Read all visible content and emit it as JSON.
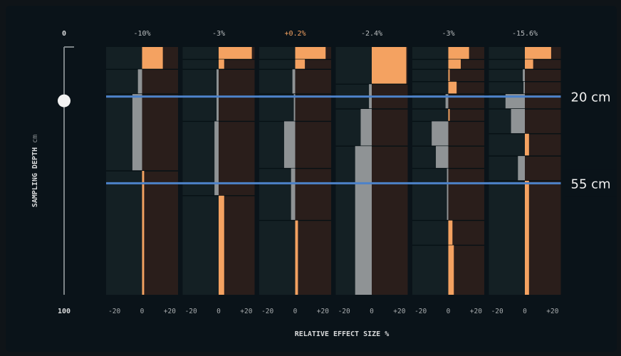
{
  "slider": {
    "top_label": "0",
    "bottom_label": "100",
    "axis_label": "SAMPLING DEPTH",
    "axis_unit": "cm",
    "value": 20
  },
  "x_axis_label": "RELATIVE EFFECT SIZE %",
  "depth_lines": [
    {
      "label": "20 cm",
      "depth": 20
    },
    {
      "label": "55 cm",
      "depth": 55
    }
  ],
  "colors": {
    "positive": "#f4a261",
    "negative": "#8f9395",
    "highlight_text": "#f4a261",
    "guide_line": "#4d82c9",
    "panel_left": "#142024",
    "panel_right": "#2a1e1b"
  },
  "chart_data": {
    "type": "bar",
    "orientation": "horizontal",
    "y_range_cm": [
      0,
      100
    ],
    "x_range": [
      -26,
      26
    ],
    "xticks": [
      "-20",
      "0",
      "+20"
    ],
    "panels": [
      {
        "title": "-10%",
        "highlight": false,
        "bars": [
          {
            "from": 0,
            "to": 9,
            "value": 15
          },
          {
            "from": 9,
            "to": 19,
            "value": -3
          },
          {
            "from": 19,
            "to": 50,
            "value": -7
          },
          {
            "from": 50,
            "to": 100,
            "value": 1.5
          }
        ]
      },
      {
        "title": "-3%",
        "highlight": false,
        "bars": [
          {
            "from": 0,
            "to": 5,
            "value": 24
          },
          {
            "from": 5,
            "to": 9,
            "value": 4
          },
          {
            "from": 9,
            "to": 30,
            "value": -1.5
          },
          {
            "from": 30,
            "to": 60,
            "value": -3
          },
          {
            "from": 60,
            "to": 100,
            "value": 4
          }
        ]
      },
      {
        "title": "+0.2%",
        "highlight": true,
        "bars": [
          {
            "from": 0,
            "to": 5,
            "value": 22
          },
          {
            "from": 5,
            "to": 9,
            "value": 7
          },
          {
            "from": 9,
            "to": 19,
            "value": -2
          },
          {
            "from": 19,
            "to": 30,
            "value": -1
          },
          {
            "from": 30,
            "to": 49,
            "value": -8
          },
          {
            "from": 49,
            "to": 70,
            "value": -3
          },
          {
            "from": 70,
            "to": 100,
            "value": 2
          }
        ]
      },
      {
        "title": "-2.4%",
        "highlight": false,
        "bars": [
          {
            "from": 0,
            "to": 15,
            "value": 25
          },
          {
            "from": 15,
            "to": 25,
            "value": -2
          },
          {
            "from": 25,
            "to": 40,
            "value": -8
          },
          {
            "from": 40,
            "to": 100,
            "value": -12
          }
        ]
      },
      {
        "title": "-3%",
        "highlight": false,
        "bars": [
          {
            "from": 0,
            "to": 5,
            "value": 15
          },
          {
            "from": 5,
            "to": 9,
            "value": 9
          },
          {
            "from": 9,
            "to": 14,
            "value": 1
          },
          {
            "from": 14,
            "to": 19,
            "value": 6
          },
          {
            "from": 19,
            "to": 25,
            "value": -2
          },
          {
            "from": 25,
            "to": 30,
            "value": 1
          },
          {
            "from": 30,
            "to": 40,
            "value": -12
          },
          {
            "from": 40,
            "to": 49,
            "value": -9
          },
          {
            "from": 49,
            "to": 70,
            "value": -1
          },
          {
            "from": 70,
            "to": 80,
            "value": 3
          },
          {
            "from": 80,
            "to": 100,
            "value": 4
          }
        ]
      },
      {
        "title": "-15.6%",
        "highlight": false,
        "bars": [
          {
            "from": 0,
            "to": 5,
            "value": 19
          },
          {
            "from": 5,
            "to": 9,
            "value": 6
          },
          {
            "from": 9,
            "to": 14,
            "value": -1.5
          },
          {
            "from": 14,
            "to": 19,
            "value": -1
          },
          {
            "from": 19,
            "to": 25,
            "value": -14
          },
          {
            "from": 25,
            "to": 35,
            "value": -10
          },
          {
            "from": 35,
            "to": 44,
            "value": 3
          },
          {
            "from": 44,
            "to": 54,
            "value": -5
          },
          {
            "from": 54,
            "to": 100,
            "value": 3
          }
        ]
      }
    ]
  }
}
